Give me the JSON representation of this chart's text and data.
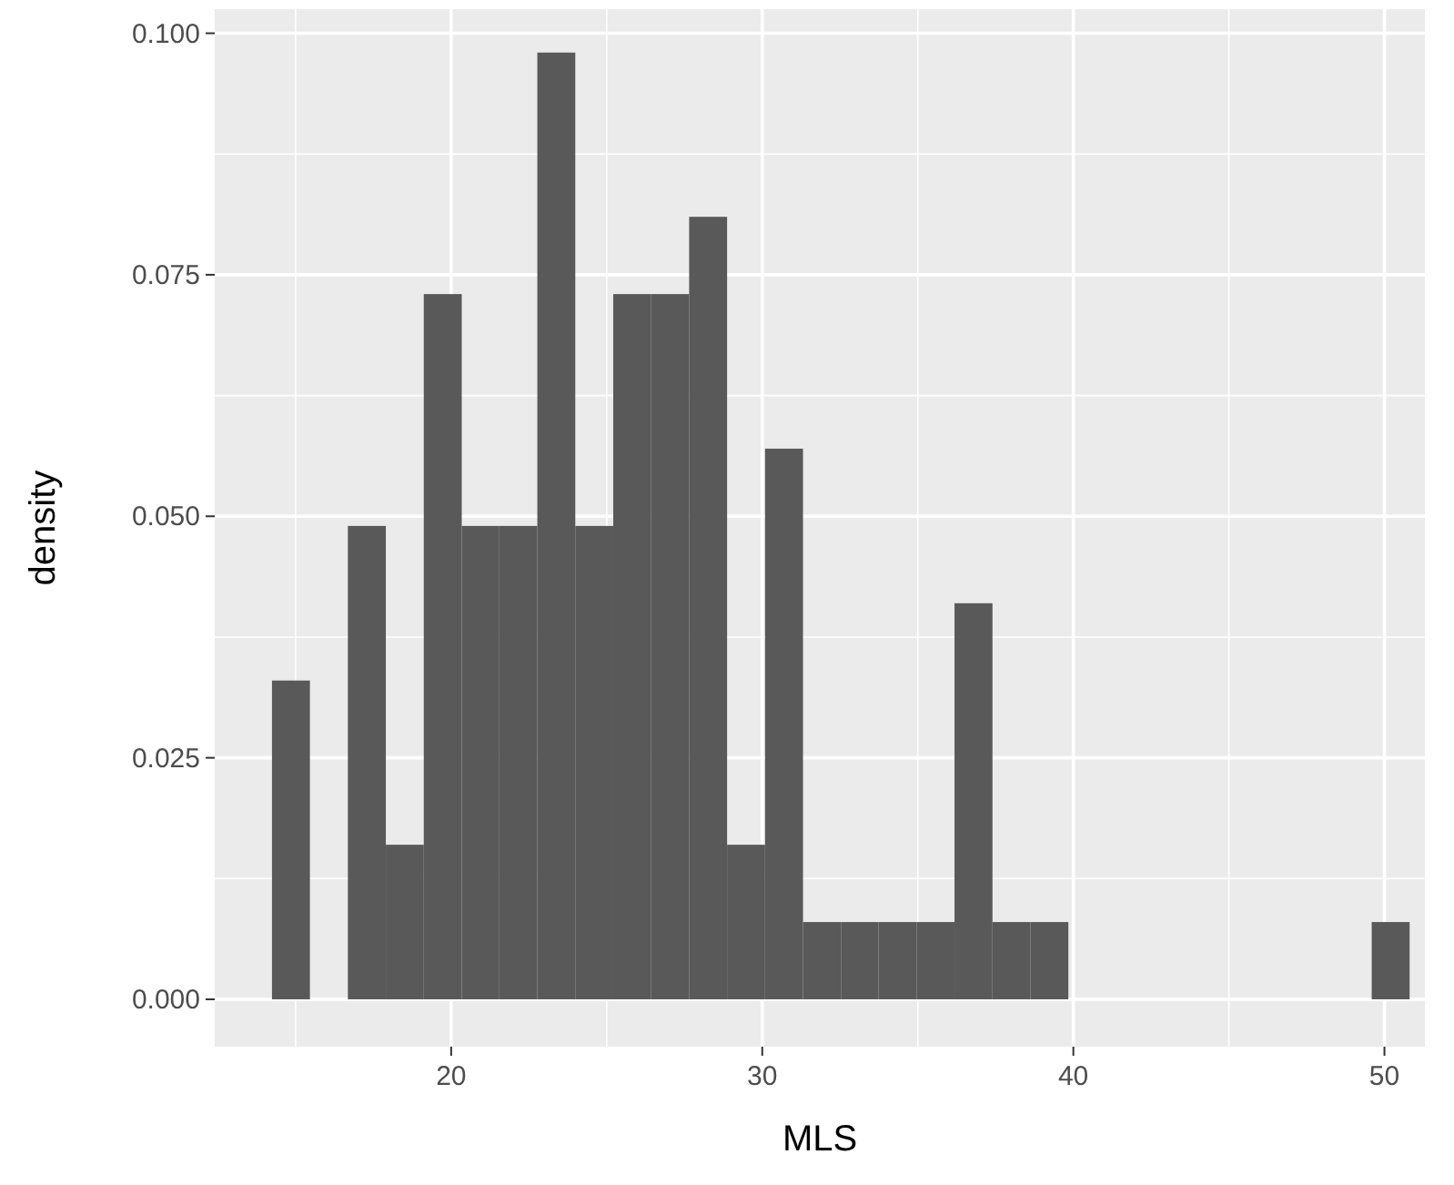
{
  "chart_data": {
    "type": "histogram",
    "xlabel": "MLS",
    "ylabel": "density",
    "color": "#595959",
    "bins": [
      14.24,
      15.46,
      16.68,
      17.9,
      19.12,
      20.34,
      21.55,
      22.77,
      23.99,
      25.21,
      26.43,
      27.65,
      28.87,
      30.09,
      31.31,
      32.53,
      33.74,
      34.96,
      36.18,
      37.4,
      38.62,
      39.84,
      41.06,
      42.28,
      43.5,
      44.72,
      45.93,
      47.15,
      48.37,
      49.59,
      50.81
    ],
    "values": [
      0.033,
      0,
      0.049,
      0.016,
      0.073,
      0.049,
      0.049,
      0.098,
      0.049,
      0.073,
      0.073,
      0.081,
      0.016,
      0.057,
      0.008,
      0.008,
      0.008,
      0.008,
      0.041,
      0.008,
      0.008,
      0,
      0,
      0,
      0,
      0,
      0,
      0,
      0,
      0.008
    ],
    "xlim": [
      12.4,
      51.3
    ],
    "xticks": [
      20,
      30,
      40,
      50
    ],
    "ylim": [
      -0.0049,
      0.1025
    ],
    "yticks": [
      {
        "value": 0,
        "label": "0.000"
      },
      {
        "value": 0.025,
        "label": "0.025"
      },
      {
        "value": 0.05,
        "label": "0.050"
      },
      {
        "value": 0.075,
        "label": "0.075"
      },
      {
        "value": 0.1,
        "label": "0.100"
      }
    ],
    "grid": true
  }
}
